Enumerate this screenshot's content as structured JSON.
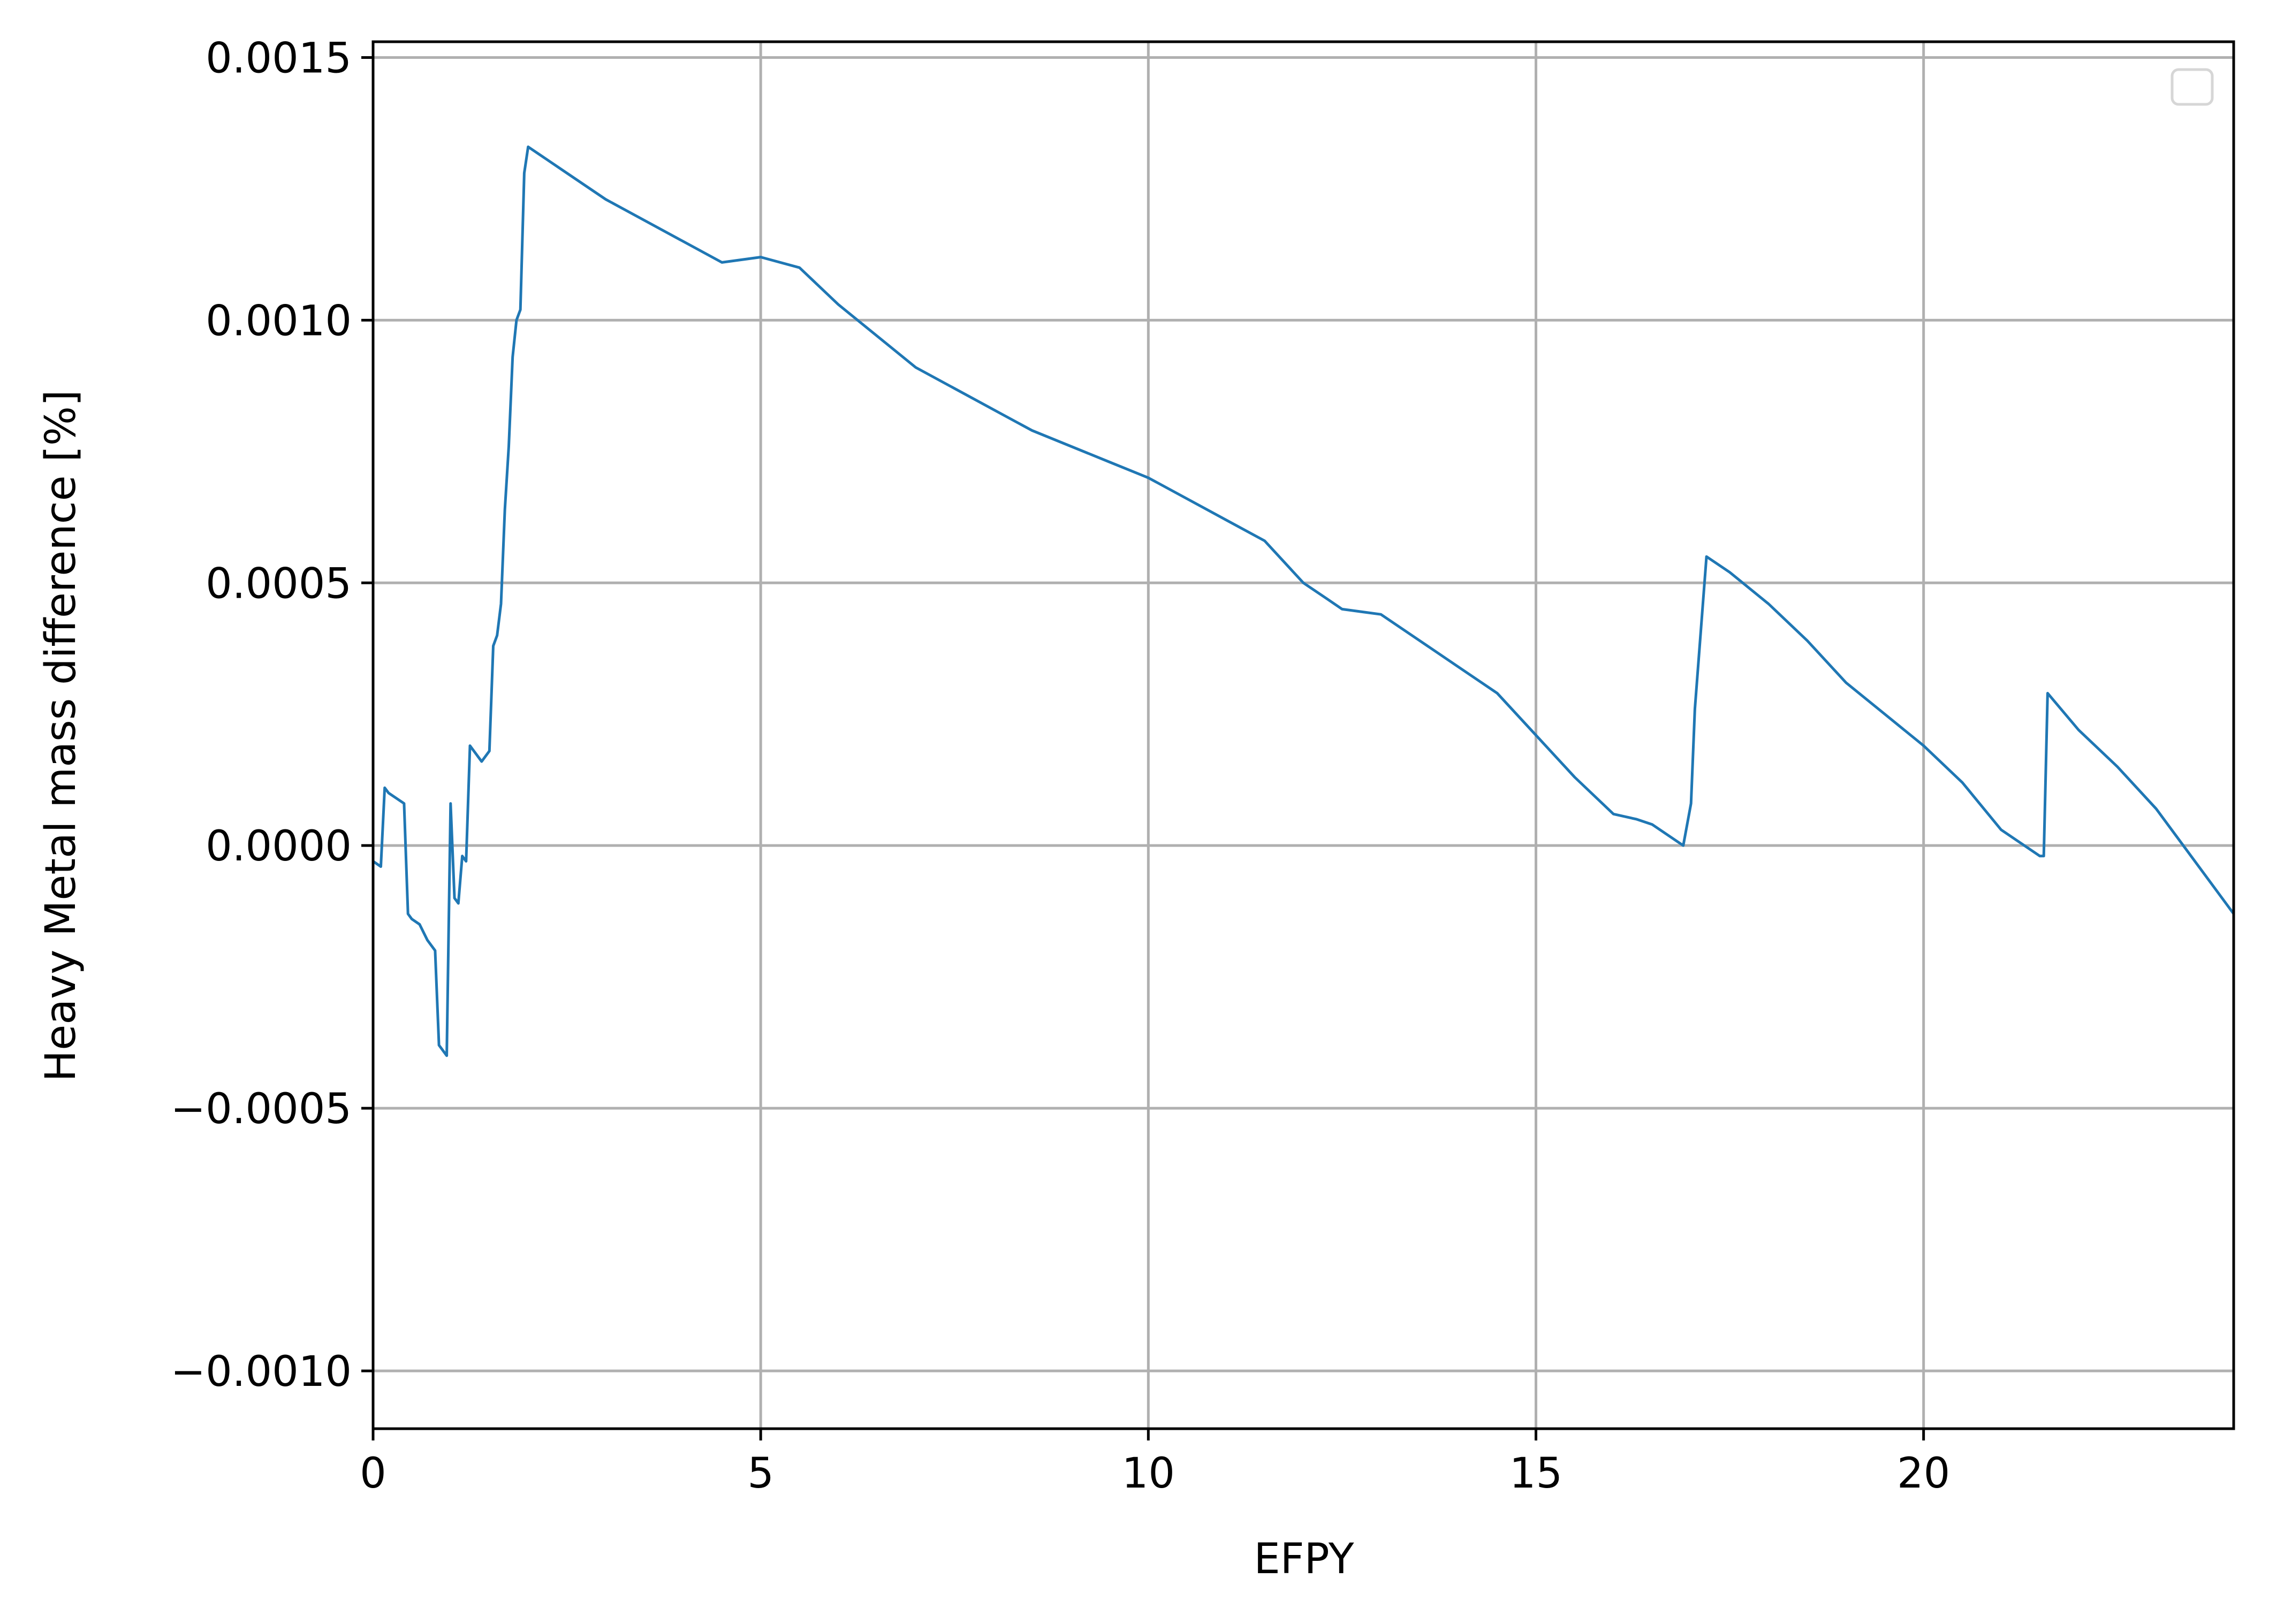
{
  "chart_data": {
    "type": "line",
    "title": "",
    "xlabel": "EFPY",
    "ylabel": "Heavy Metal mass difference [%]",
    "xlim": [
      0,
      24
    ],
    "ylim": [
      -0.00111,
      0.00153
    ],
    "x_ticks": [
      0,
      5,
      10,
      15,
      20
    ],
    "x_tick_labels": [
      "0",
      "5",
      "10",
      "15",
      "20"
    ],
    "y_ticks": [
      -0.001,
      -0.0005,
      0.0,
      0.0005,
      0.001,
      0.0015
    ],
    "y_tick_labels": [
      "−0.0010",
      "−0.0005",
      "0.0000",
      "0.0005",
      "0.0010",
      "0.0015"
    ],
    "grid": true,
    "legend": {
      "placement": "top-right",
      "entries": []
    },
    "line_color": "#1f77b4",
    "series": [
      {
        "x": [
          0.0,
          0.1,
          0.15,
          0.2,
          0.3,
          0.4,
          0.45,
          0.5,
          0.6,
          0.7,
          0.8,
          0.85,
          0.9,
          0.95,
          1.0,
          1.05,
          1.1,
          1.15,
          1.2,
          1.25,
          1.3,
          1.4,
          1.5,
          1.55,
          1.6,
          1.65,
          1.7,
          1.75,
          1.8,
          1.85,
          1.9,
          1.95,
          2.0,
          2.5,
          3.0,
          3.5,
          4.0,
          4.5,
          5.0,
          5.5,
          6.0,
          6.5,
          7.0,
          7.5,
          8.0,
          8.5,
          9.0,
          9.5,
          10.0,
          10.5,
          11.0,
          11.5,
          12.0,
          12.3,
          12.5,
          13.0,
          13.5,
          14.0,
          14.5,
          15.0,
          15.5,
          16.0,
          16.3,
          16.5,
          16.9,
          17.0,
          17.05,
          17.2,
          17.5,
          18.0,
          18.5,
          19.0,
          19.5,
          20.0,
          20.5,
          21.0,
          21.5,
          21.55,
          21.6,
          22.0,
          22.5,
          23.0,
          23.5,
          24.0
        ],
        "y": [
          -3e-05,
          -4e-05,
          0.00011,
          0.0001,
          9e-05,
          8e-05,
          -0.00013,
          -0.00014,
          -0.00015,
          -0.00018,
          -0.0002,
          -0.00038,
          -0.00039,
          -0.0004,
          8e-05,
          -0.0001,
          -0.00011,
          -2e-05,
          -3e-05,
          0.00019,
          0.00018,
          0.00016,
          0.00018,
          0.00038,
          0.0004,
          0.00046,
          0.00064,
          0.00076,
          0.00093,
          0.001,
          0.00102,
          0.00128,
          0.00133,
          0.00128,
          0.00123,
          0.00119,
          0.00115,
          0.00111,
          0.00112,
          0.0011,
          0.00103,
          0.00097,
          0.00091,
          0.00087,
          0.00083,
          0.00079,
          0.00076,
          0.00073,
          0.0007,
          0.00066,
          0.00062,
          0.00058,
          0.0005,
          0.00047,
          0.00045,
          0.00044,
          0.00039,
          0.00034,
          0.00029,
          0.00021,
          0.00013,
          6e-05,
          5e-05,
          4e-05,
          0.0,
          8e-05,
          0.00026,
          0.00055,
          0.00052,
          0.00046,
          0.00039,
          0.00031,
          0.00025,
          0.00019,
          0.00012,
          3e-05,
          -2e-05,
          -2e-05,
          0.00029,
          0.00022,
          0.00015,
          7e-05,
          -3e-05,
          -0.00013
        ]
      }
    ]
  }
}
